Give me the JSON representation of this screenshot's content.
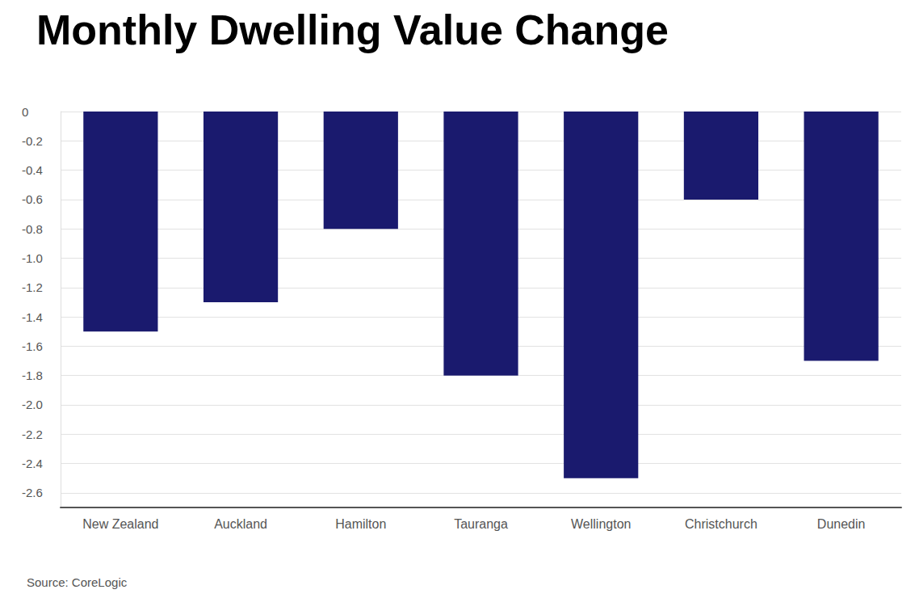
{
  "chart_data": {
    "type": "bar",
    "title": "Monthly Dwelling Value Change",
    "source": "Source: CoreLogic",
    "categories": [
      "New Zealand",
      "Auckland",
      "Hamilton",
      "Tauranga",
      "Wellington",
      "Christchurch",
      "Dunedin"
    ],
    "values": [
      -1.5,
      -1.3,
      -0.8,
      -1.8,
      -2.5,
      -0.6,
      -1.7
    ],
    "color": "#1a1a6e",
    "ylim": [
      -2.7,
      0
    ],
    "yticks": [
      0,
      -0.2,
      -0.4,
      -0.6,
      -0.8,
      {
        "value": -1,
        "label": "-1.0"
      },
      -1.2,
      -1.4,
      -1.6,
      -1.8,
      {
        "value": -2,
        "label": "-2.0"
      },
      -2.2,
      -2.4,
      -2.6
    ],
    "grid": true
  }
}
